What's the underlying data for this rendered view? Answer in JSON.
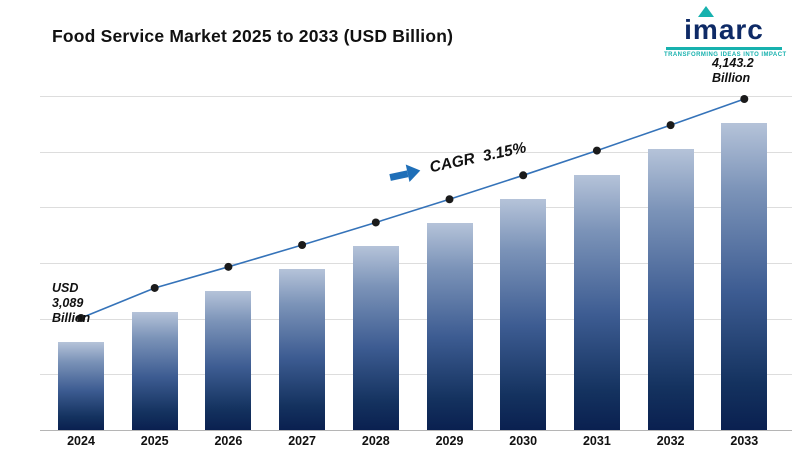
{
  "title": "Food Service Market 2025 to 2033 (USD Billion)",
  "logo": {
    "name": "imarc",
    "tagline": "TRANSFORMING IDEAS INTO IMPACT",
    "accent_color": "#17b1ae",
    "text_color": "#0e2a66"
  },
  "annotations": {
    "start_label": "USD\n3,089\nBillion",
    "end_label": "4,143.2\nBillion",
    "cagr_label": "CAGR  3.15%"
  },
  "chart_data": {
    "type": "bar",
    "overlay": "line-with-markers",
    "title": "Food Service Market 2025 to 2033 (USD Billion)",
    "xlabel": "",
    "ylabel": "",
    "categories": [
      "2024",
      "2025",
      "2026",
      "2027",
      "2028",
      "2029",
      "2030",
      "2031",
      "2032",
      "2033"
    ],
    "values": [
      3089,
      3233.5,
      3335.4,
      3440.4,
      3548.8,
      3660.6,
      3775.9,
      3894.8,
      4017.5,
      4143.2
    ],
    "ylim": [
      2650,
      4280
    ],
    "grid": "horizontal",
    "legend": "none",
    "cagr_percent": 3.15,
    "start_value_label": "USD 3,089 Billion",
    "end_value_label": "4,143.2 Billion",
    "bar_gradient": [
      "#b5c3d9",
      "#0a2050"
    ],
    "line_color": "#3573b9",
    "marker_color": "#1b1b1b"
  }
}
